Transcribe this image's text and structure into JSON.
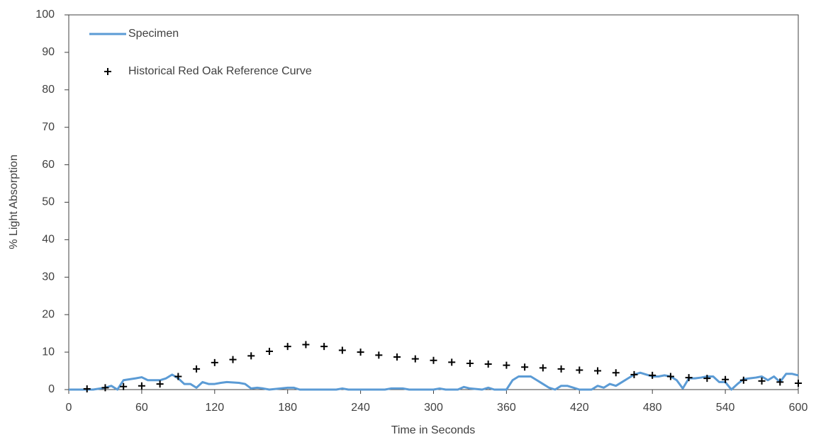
{
  "chart_data": {
    "type": "line",
    "xlabel": "Time in Seconds",
    "ylabel": "% Light Absorption",
    "xlim": [
      0,
      600
    ],
    "ylim": [
      0,
      100
    ],
    "xticks": [
      0,
      60,
      120,
      180,
      240,
      300,
      360,
      420,
      480,
      540,
      600
    ],
    "yticks": [
      0,
      10,
      20,
      30,
      40,
      50,
      60,
      70,
      80,
      90,
      100
    ],
    "series": [
      {
        "name": "Specimen",
        "color": "#5b9bd5",
        "style": "line",
        "x": [
          0,
          20,
          30,
          35,
          40,
          45,
          55,
          60,
          65,
          70,
          75,
          80,
          85,
          90,
          95,
          100,
          105,
          110,
          115,
          120,
          125,
          130,
          140,
          145,
          150,
          155,
          160,
          165,
          180,
          185,
          190,
          220,
          225,
          230,
          260,
          265,
          275,
          280,
          300,
          305,
          310,
          320,
          325,
          330,
          340,
          345,
          350,
          360,
          365,
          370,
          380,
          385,
          390,
          395,
          400,
          405,
          410,
          415,
          420,
          430,
          435,
          440,
          445,
          450,
          455,
          460,
          465,
          470,
          475,
          480,
          485,
          490,
          495,
          500,
          505,
          510,
          515,
          520,
          525,
          530,
          535,
          540,
          545,
          550,
          555,
          560,
          565,
          570,
          575,
          580,
          585,
          590,
          595,
          600
        ],
        "values": [
          0,
          0,
          0.5,
          1,
          0,
          2.5,
          3,
          3.3,
          2.5,
          2.5,
          2.5,
          3,
          4,
          3,
          1.5,
          1.5,
          0.5,
          2,
          1.5,
          1.5,
          1.8,
          2,
          1.8,
          1.5,
          0.3,
          0.5,
          0.3,
          0,
          0.5,
          0.5,
          0,
          0,
          0.3,
          0,
          0,
          0.3,
          0.3,
          0,
          0,
          0.3,
          0,
          0,
          0.7,
          0.3,
          0,
          0.5,
          0,
          0,
          2.5,
          3.5,
          3.5,
          2.5,
          1.5,
          0.5,
          0,
          1,
          1,
          0.5,
          0,
          0,
          1,
          0.5,
          1.5,
          1,
          2,
          3,
          4,
          4.5,
          4,
          3.5,
          3.5,
          3.8,
          3.5,
          2.5,
          0.3,
          3,
          3,
          3.2,
          3.5,
          3.5,
          2,
          2,
          0,
          1.5,
          2.8,
          3,
          3.2,
          3.5,
          2.5,
          3.5,
          2,
          4.2,
          4.2,
          3.8
        ]
      },
      {
        "name": "Historical Red Oak Reference Curve",
        "color": "#000000",
        "style": "marker",
        "x": [
          15,
          30,
          45,
          60,
          75,
          90,
          105,
          120,
          135,
          150,
          165,
          180,
          195,
          210,
          225,
          240,
          255,
          270,
          285,
          300,
          315,
          330,
          345,
          360,
          375,
          390,
          405,
          420,
          435,
          450,
          465,
          480,
          495,
          510,
          525,
          540,
          555,
          570,
          585,
          600
        ],
        "values": [
          0.2,
          0.5,
          0.8,
          1,
          1.5,
          3.5,
          5.5,
          7.2,
          8,
          9,
          10.2,
          11.5,
          12,
          11.5,
          10.5,
          10,
          9.2,
          8.7,
          8.2,
          7.8,
          7.3,
          7,
          6.8,
          6.5,
          6,
          5.8,
          5.5,
          5.2,
          5,
          4.5,
          4,
          3.8,
          3.5,
          3.2,
          3,
          2.7,
          2.5,
          2.3,
          2,
          1.7
        ]
      }
    ]
  }
}
